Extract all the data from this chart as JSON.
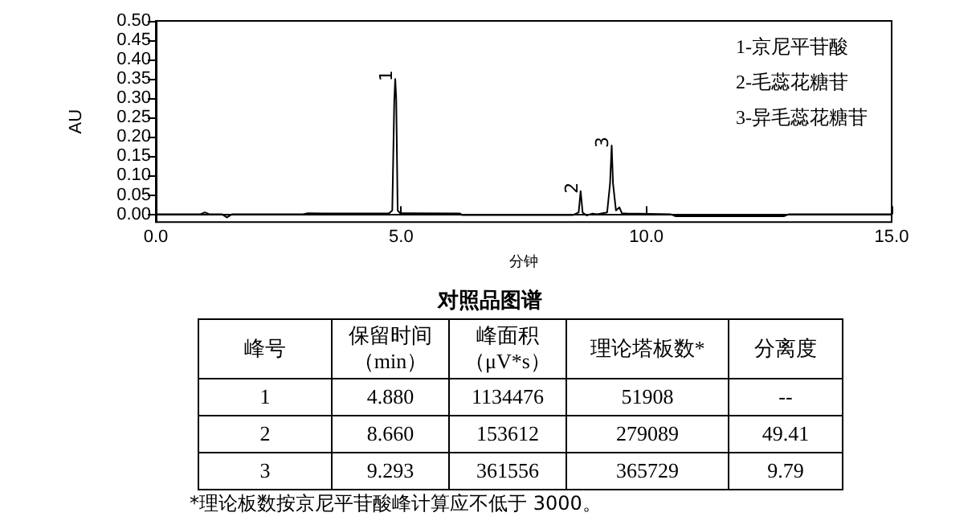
{
  "chart_data": {
    "type": "line",
    "xlabel": "分钟",
    "ylabel": "AU",
    "x": [
      0,
      0.9,
      1.0,
      1.1,
      1.35,
      1.45,
      1.55,
      3.0,
      3.1,
      3.4,
      4.75,
      4.82,
      4.86,
      4.88,
      4.9,
      4.93,
      4.98,
      6.2,
      6.25,
      8.5,
      8.62,
      8.66,
      8.7,
      8.78,
      8.9,
      9.0,
      9.2,
      9.26,
      9.293,
      9.32,
      9.38,
      9.45,
      9.5,
      9.6,
      10.5,
      10.6,
      12.8,
      12.9,
      15
    ],
    "series": [
      {
        "color": "#000000",
        "values": [
          0,
          0,
          0.005,
          0,
          0,
          -0.008,
          0,
          0,
          0.003,
          0.002,
          0.002,
          0.01,
          0.29,
          0.35,
          0.3,
          0.01,
          0.003,
          0.002,
          -0.002,
          -0.002,
          0.005,
          0.06,
          0.005,
          -0.003,
          0.002,
          0,
          0.005,
          0.08,
          0.178,
          0.08,
          0.01,
          0.018,
          0.003,
          0.002,
          0,
          -0.005,
          -0.005,
          0,
          0
        ]
      }
    ],
    "xlim": [
      0,
      15
    ],
    "xticks": [
      {
        "value": 0,
        "label": "0.0"
      },
      {
        "value": 5,
        "label": "5.0"
      },
      {
        "value": 10,
        "label": "10.0"
      },
      {
        "value": 15,
        "label": "15.0"
      }
    ],
    "ylim": [
      -0.02,
      0.5
    ],
    "yticks": [
      {
        "value": 0,
        "label": "0.00"
      },
      {
        "value": 0.05,
        "label": "0.05"
      },
      {
        "value": 0.1,
        "label": "0.10"
      },
      {
        "value": 0.15,
        "label": "0.15"
      },
      {
        "value": 0.2,
        "label": "0.20"
      },
      {
        "value": 0.25,
        "label": "0.25"
      },
      {
        "value": 0.3,
        "label": "0.30"
      },
      {
        "value": 0.35,
        "label": "0.35"
      },
      {
        "value": 0.4,
        "label": "0.40"
      },
      {
        "value": 0.45,
        "label": "0.45"
      },
      {
        "value": 0.5,
        "label": "0.50"
      }
    ],
    "marker": "none",
    "line_style": "solid",
    "annotations": [
      {
        "text": "1",
        "x": 4.88,
        "y": 0.35
      },
      {
        "text": "2",
        "x": 8.66,
        "y": 0.06
      },
      {
        "text": "3",
        "x": 9.293,
        "y": 0.178
      },
      "1-京尼平苷酸",
      "2-毛蕊花糖苷",
      "3-异毛蕊花糖苷",
      "对照品图谱",
      "峰号",
      "保留时间（min）",
      "峰面积（μV*s）",
      "理论塔板数*",
      "分离度",
      "1",
      "4.880",
      "1134476",
      "51908",
      "--",
      "2",
      "8.660",
      "153612",
      "279089",
      "49.41",
      "3",
      "9.293",
      "361556",
      "365729",
      "9.79",
      "*理论板数按京尼平苷酸峰计算应不低于 3000。"
    ]
  }
}
